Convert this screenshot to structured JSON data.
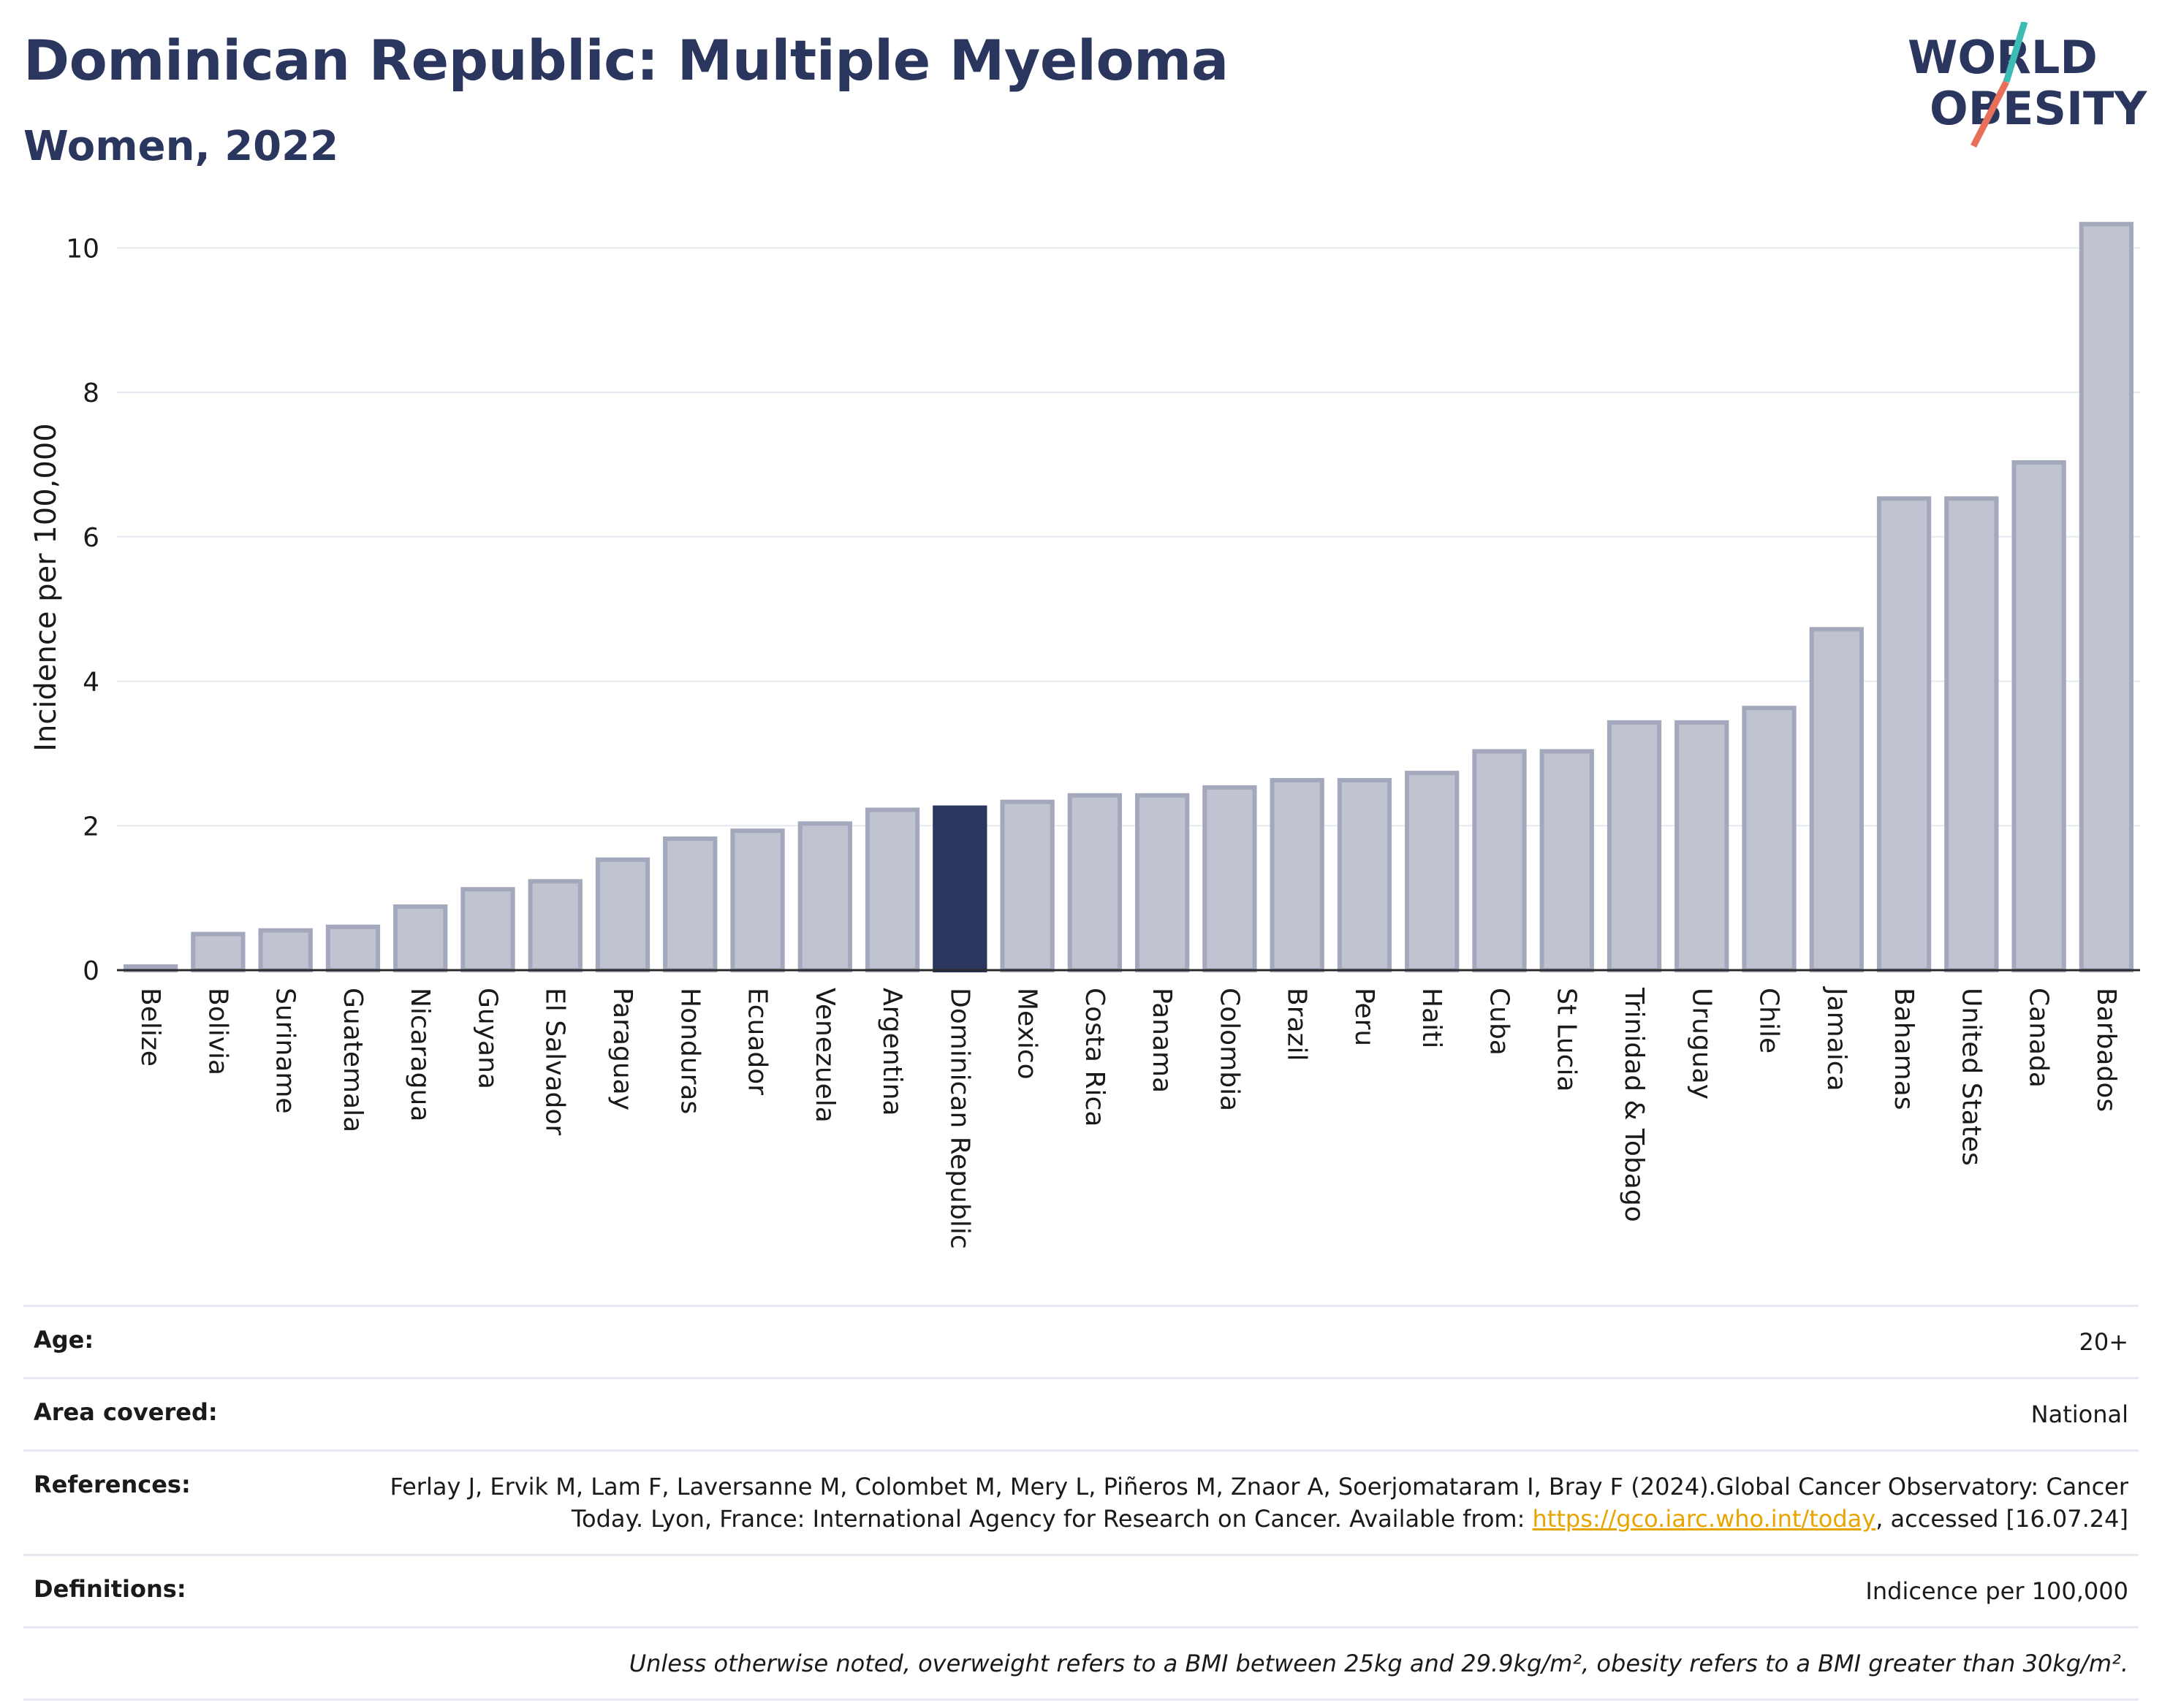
{
  "header": {
    "title": "Dominican Republic: Multiple Myeloma",
    "subtitle": "Women, 2022",
    "logo_line1": "WORLD",
    "logo_line2": "OBESITY"
  },
  "chart_data": {
    "type": "bar",
    "title": "Dominican Republic: Multiple Myeloma",
    "subtitle": "Women, 2022",
    "xlabel": "",
    "ylabel": "Incidence per 100,000",
    "ylim": [
      0,
      10.6
    ],
    "yticks": [
      0,
      2,
      4,
      6,
      8,
      10
    ],
    "grid": true,
    "highlight": "Dominican Republic",
    "colors": {
      "bar": "#c0c3d0",
      "bar_edge": "#a3a8bc",
      "highlight": "#2b365e"
    },
    "categories": [
      "Belize",
      "Bolivia",
      "Suriname",
      "Guatemala",
      "Nicaragua",
      "Guyana",
      "El Salvador",
      "Paraguay",
      "Honduras",
      "Ecuador",
      "Venezuela",
      "Argentina",
      "Dominican Republic",
      "Mexico",
      "Costa Rica",
      "Panama",
      "Colombia",
      "Brazil",
      "Peru",
      "Haiti",
      "Cuba",
      "St Lucia",
      "Trinidad & Tobago",
      "Uruguay",
      "Chile",
      "Jamaica",
      "Bahamas",
      "United States",
      "Canada",
      "Barbados"
    ],
    "values": [
      0.05,
      0.5,
      0.55,
      0.6,
      0.88,
      1.12,
      1.23,
      1.53,
      1.82,
      1.93,
      2.03,
      2.22,
      2.25,
      2.33,
      2.42,
      2.42,
      2.53,
      2.63,
      2.63,
      2.73,
      3.03,
      3.03,
      3.43,
      3.43,
      3.63,
      4.72,
      6.53,
      6.53,
      7.03,
      10.33
    ]
  },
  "info": [
    {
      "key": "Age:",
      "value": "20+"
    },
    {
      "key": "Area covered:",
      "value": "National"
    },
    {
      "key": "References:",
      "value": "Ferlay J, Ervik M, Lam F, Laversanne M, Colombet M, Mery L, Piñeros M, Znaor A, Soerjomataram I, Bray F (2024).Global Cancer Observatory: Cancer Today. Lyon, France: International Agency for Research on Cancer. Available from: ",
      "link": "https://gco.iarc.who.int/today",
      "suffix": ", accessed [16.07.24]"
    },
    {
      "key": "Definitions:",
      "value": "Indicence per 100,000"
    },
    {
      "key": "",
      "value": "Unless otherwise noted, overweight refers to a BMI between 25kg and 29.9kg/m², obesity refers to a BMI greater than 30kg/m²."
    }
  ]
}
